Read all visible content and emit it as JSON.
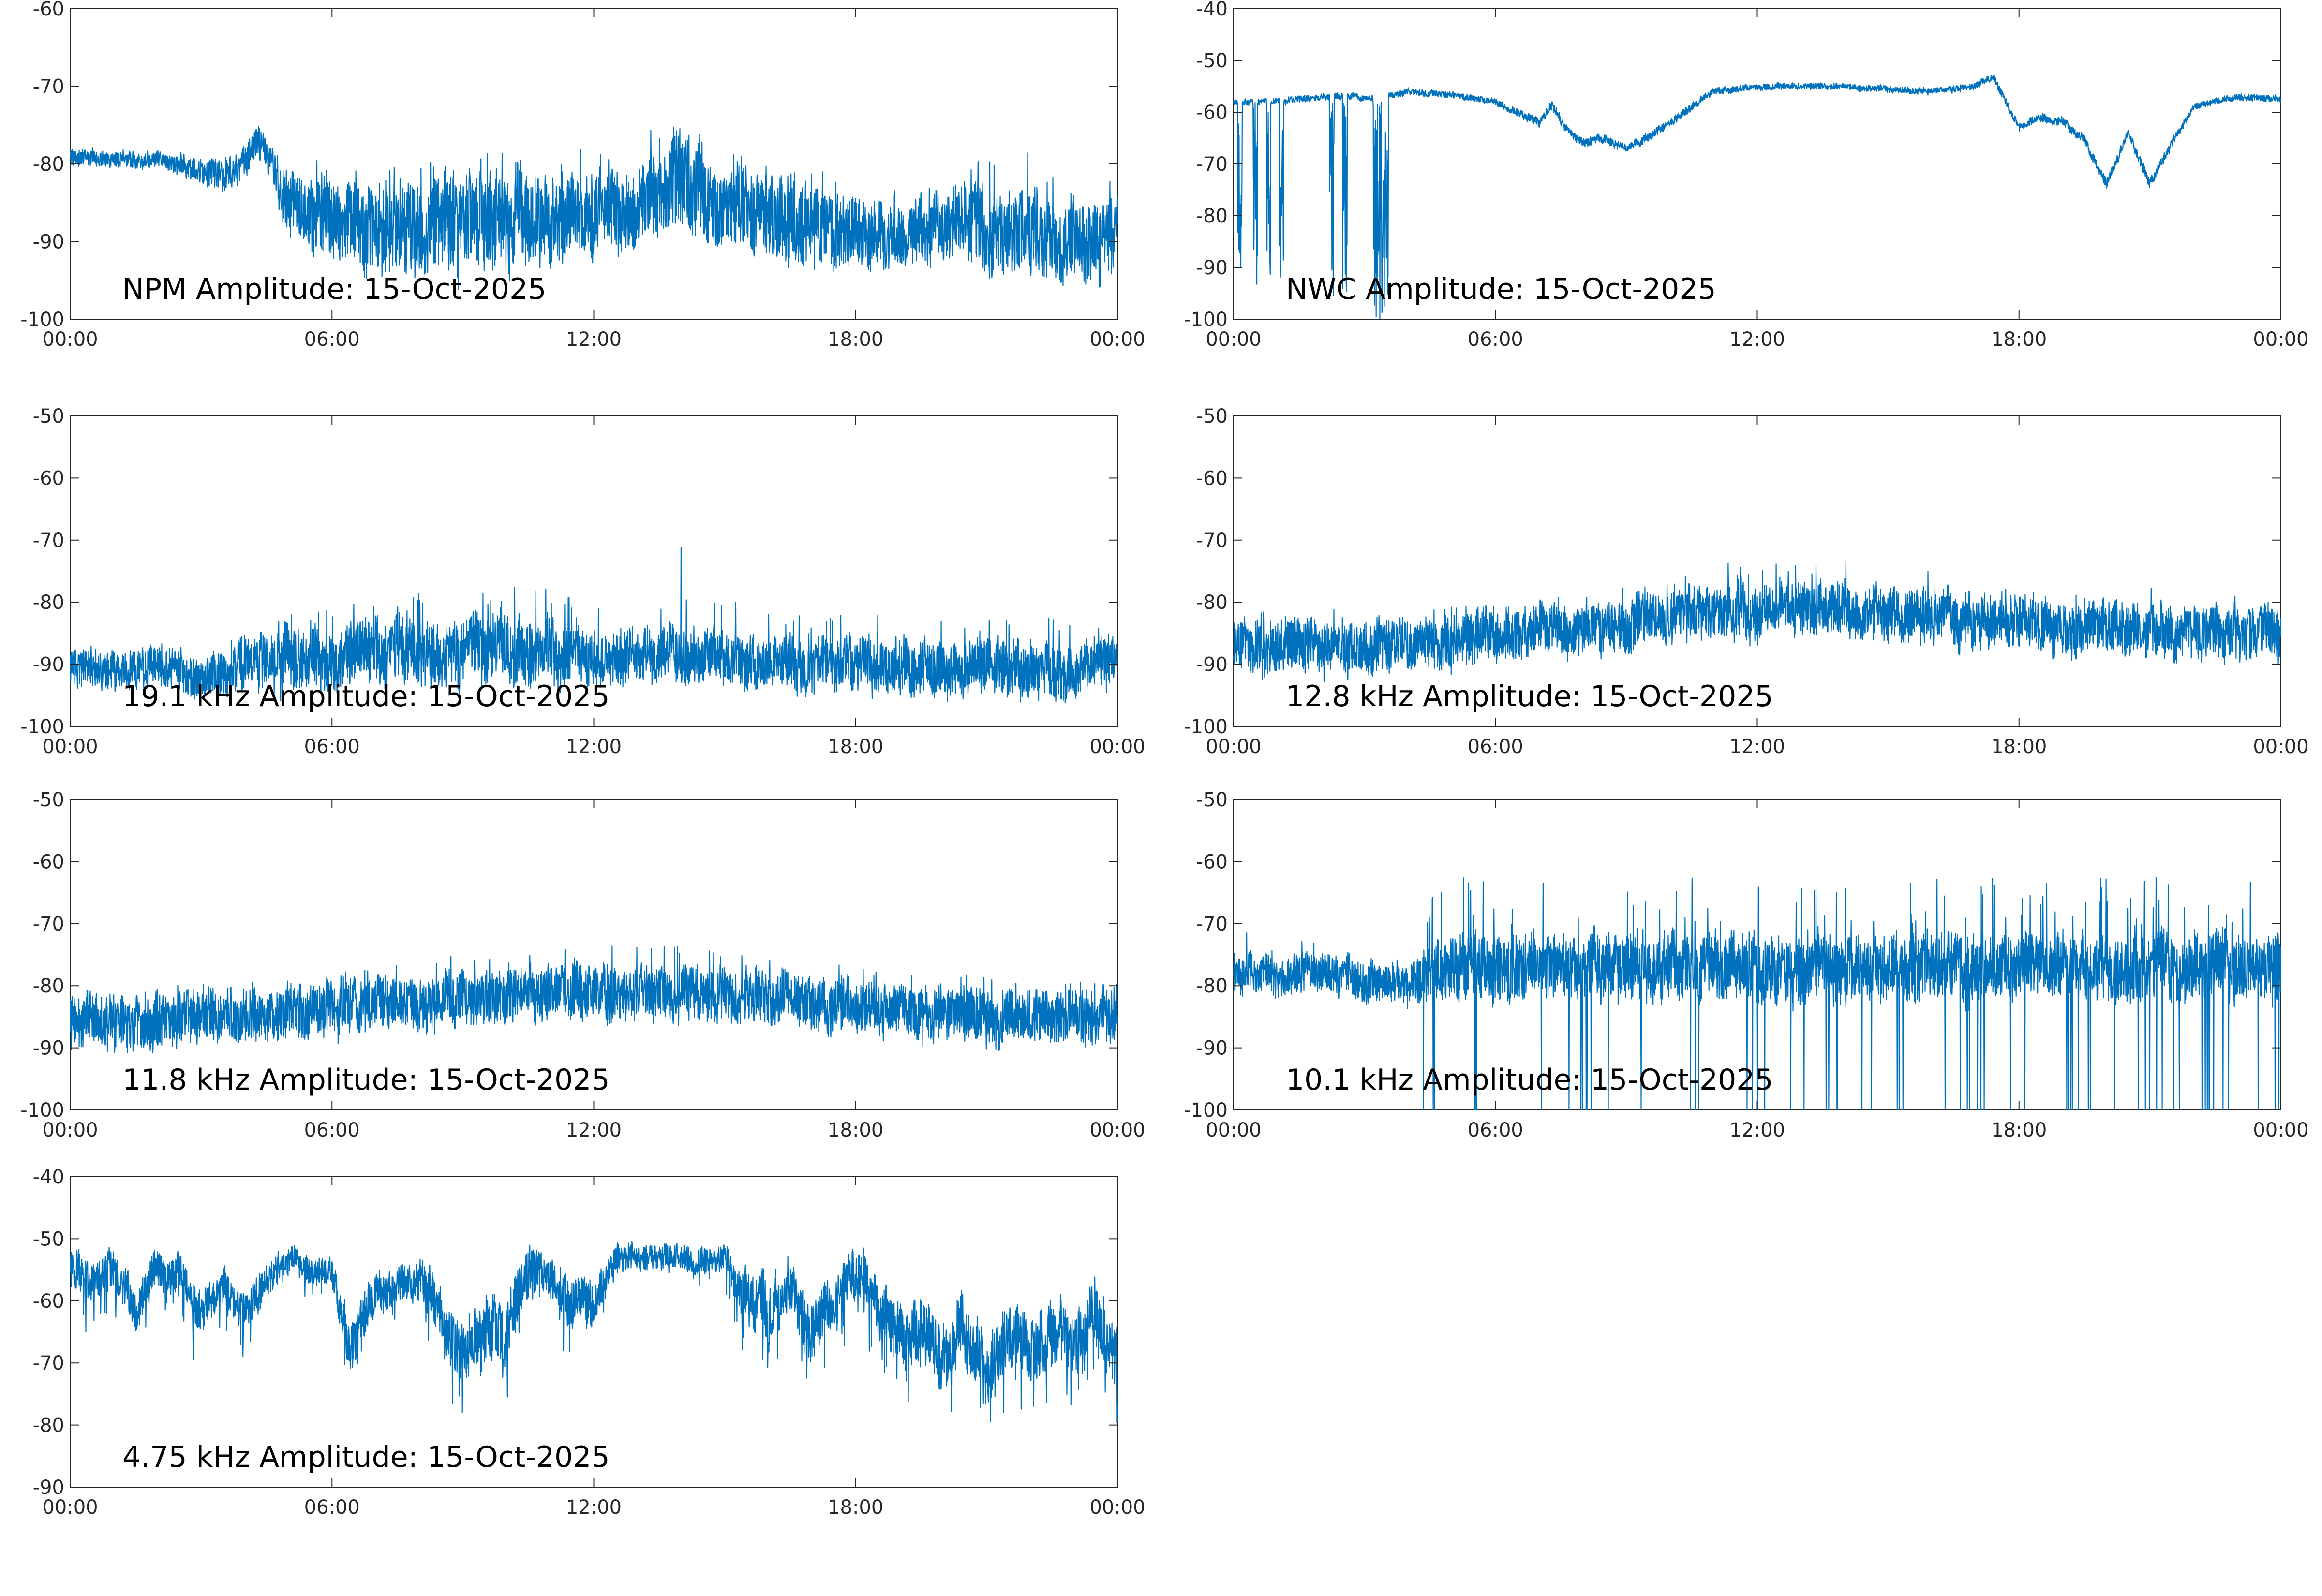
{
  "figure": {
    "line_color": "#0072BD",
    "axis_color": "#262626",
    "background": "#ffffff"
  },
  "chart_data": [
    {
      "type": "line",
      "title": "NPM Amplitude: 15-Oct-2025",
      "xlabel": "",
      "ylabel": "",
      "x_ticks": [
        "00:00",
        "06:00",
        "12:00",
        "18:00",
        "00:00"
      ],
      "y_ticks": [
        "-60",
        "-70",
        "-80",
        "-90",
        "-100"
      ],
      "ylim": [
        -100,
        -60
      ],
      "xlim_hours": [
        0,
        24
      ],
      "grid": false,
      "series": [
        {
          "x_hours": [
            0,
            1,
            2,
            3,
            3.5,
            4,
            4.3,
            4.6,
            5,
            6,
            7,
            8,
            9,
            10,
            11,
            12,
            13,
            14,
            15,
            16,
            17,
            18,
            19,
            20,
            21,
            22,
            23,
            24
          ],
          "values": [
            -79,
            -79.5,
            -79.5,
            -81,
            -82,
            -80,
            -77,
            -80,
            -85,
            -87,
            -88,
            -88,
            -87,
            -87,
            -87,
            -86,
            -86,
            -83,
            -85,
            -87,
            -88,
            -89,
            -89,
            -88,
            -89,
            -89,
            -90,
            -90
          ],
          "spread": [
            1,
            1,
            1,
            1.5,
            2,
            2,
            2,
            2,
            4,
            5,
            6,
            6,
            6,
            6,
            5,
            5,
            5,
            6,
            5,
            5,
            5,
            4,
            4,
            4,
            5,
            5,
            5,
            5
          ],
          "spike_up_max": [
            1,
            1,
            1,
            1,
            1,
            2,
            2,
            3,
            6,
            8,
            9,
            8,
            10,
            9,
            8,
            9,
            9,
            12,
            8,
            8,
            8,
            6,
            6,
            8,
            10,
            11,
            9,
            8
          ]
        }
      ]
    },
    {
      "type": "line",
      "title": "NWC Amplitude: 15-Oct-2025",
      "xlabel": "",
      "ylabel": "",
      "x_ticks": [
        "00:00",
        "06:00",
        "12:00",
        "18:00",
        "00:00"
      ],
      "y_ticks": [
        "-40",
        "-50",
        "-60",
        "-70",
        "-80",
        "-90",
        "-100"
      ],
      "ylim": [
        -100,
        -40
      ],
      "xlim_hours": [
        0,
        24
      ],
      "grid": false,
      "series": [
        {
          "x_hours": [
            0,
            1,
            2,
            3,
            3.4,
            4,
            5,
            6,
            7,
            7.3,
            7.6,
            8,
            8.5,
            9,
            9.3,
            10,
            11,
            12,
            13,
            14,
            15,
            16,
            17,
            17.4,
            18,
            18.5,
            19,
            19.5,
            20,
            20.5,
            21,
            21.5,
            22,
            23,
            24
          ],
          "values": [
            -58,
            -58,
            -57,
            -57,
            -57.5,
            -56,
            -56.5,
            -58,
            -62,
            -59,
            -63,
            -66,
            -65,
            -67,
            -66,
            -62,
            -56,
            -55,
            -55,
            -55,
            -55.5,
            -56,
            -55,
            -53,
            -63,
            -61,
            -62,
            -65,
            -74,
            -64,
            -74,
            -66,
            -59,
            -57,
            -57.5
          ],
          "spread": [
            0.6,
            0.6,
            0.6,
            0.6,
            0.6,
            0.6,
            0.6,
            0.6,
            0.8,
            0.8,
            0.8,
            0.8,
            0.8,
            0.8,
            0.8,
            0.8,
            0.6,
            0.6,
            0.6,
            0.6,
            0.6,
            0.6,
            0.6,
            0.6,
            0.8,
            0.8,
            0.8,
            0.8,
            1,
            0.8,
            1,
            0.8,
            0.6,
            0.6,
            0.6
          ],
          "dropouts": [
            {
              "start_hours": 0.1,
              "end_hours": 0.2,
              "min": -94
            },
            {
              "start_hours": 0.45,
              "end_hours": 0.55,
              "min": -94
            },
            {
              "start_hours": 0.75,
              "end_hours": 0.85,
              "min": -93
            },
            {
              "start_hours": 1.05,
              "end_hours": 1.15,
              "min": -93
            },
            {
              "start_hours": 2.2,
              "end_hours": 2.3,
              "min": -96
            },
            {
              "start_hours": 2.5,
              "end_hours": 2.6,
              "min": -95
            },
            {
              "start_hours": 3.2,
              "end_hours": 3.55,
              "min": -100
            }
          ]
        }
      ]
    },
    {
      "type": "line",
      "title": "19.1 kHz Amplitude: 15-Oct-2025",
      "xlabel": "",
      "ylabel": "",
      "x_ticks": [
        "00:00",
        "06:00",
        "12:00",
        "18:00",
        "00:00"
      ],
      "y_ticks": [
        "-50",
        "-60",
        "-70",
        "-80",
        "-90",
        "-100"
      ],
      "ylim": [
        -100,
        -50
      ],
      "xlim_hours": [
        0,
        24
      ],
      "grid": false,
      "series": [
        {
          "x_hours": [
            0,
            1,
            2,
            3,
            4,
            5,
            6,
            7,
            8,
            9,
            10,
            11,
            12,
            13,
            14,
            15,
            16,
            17,
            18,
            19,
            20,
            21,
            22,
            23,
            24
          ],
          "values": [
            -91,
            -91,
            -90,
            -93,
            -90,
            -89,
            -89,
            -88,
            -88,
            -88,
            -88,
            -88,
            -89,
            -89,
            -89,
            -89,
            -90,
            -90,
            -90,
            -90,
            -91,
            -90,
            -91,
            -91,
            -90
          ],
          "spread": [
            3,
            3,
            3,
            3,
            4,
            5,
            5,
            5,
            5,
            5,
            5,
            5,
            4,
            4,
            4,
            4,
            4,
            4,
            4,
            4,
            4,
            4,
            4,
            4,
            4
          ],
          "spike_up_max": [
            3,
            3,
            4,
            3,
            6,
            8,
            9,
            10,
            10,
            10,
            9,
            18,
            9,
            9,
            20,
            10,
            9,
            9,
            8,
            8,
            8,
            8,
            9,
            8,
            8
          ]
        }
      ]
    },
    {
      "type": "line",
      "title": "12.8 kHz Amplitude: 15-Oct-2025",
      "xlabel": "",
      "ylabel": "",
      "x_ticks": [
        "00:00",
        "06:00",
        "12:00",
        "18:00",
        "00:00"
      ],
      "y_ticks": [
        "-50",
        "-60",
        "-70",
        "-80",
        "-90",
        "-100"
      ],
      "ylim": [
        -100,
        -50
      ],
      "xlim_hours": [
        0,
        24
      ],
      "grid": false,
      "series": [
        {
          "x_hours": [
            0,
            1,
            2,
            3,
            4,
            5,
            6,
            7,
            8,
            9,
            10,
            11,
            12,
            13,
            14,
            15,
            16,
            17,
            18,
            19,
            20,
            21,
            22,
            23,
            24
          ],
          "values": [
            -88,
            -87,
            -87,
            -87,
            -87,
            -86,
            -85,
            -85,
            -84,
            -83,
            -82,
            -82,
            -81,
            -81,
            -81,
            -82,
            -82,
            -83,
            -83,
            -84,
            -84,
            -85,
            -85,
            -85,
            -85
          ],
          "spread": [
            4,
            4,
            4,
            4,
            4,
            4,
            4,
            4,
            4,
            4,
            4,
            4,
            4,
            4,
            4,
            4,
            4,
            4,
            4,
            4,
            4,
            4,
            4,
            4,
            4
          ],
          "spike_up_max": [
            6,
            6,
            6,
            6,
            7,
            6,
            6,
            6,
            6,
            6,
            6,
            7,
            11,
            7,
            9,
            7,
            7,
            6,
            6,
            6,
            6,
            8,
            6,
            6,
            6
          ]
        }
      ]
    },
    {
      "type": "line",
      "title": "11.8 kHz Amplitude: 15-Oct-2025",
      "xlabel": "",
      "ylabel": "",
      "x_ticks": [
        "00:00",
        "06:00",
        "12:00",
        "18:00",
        "00:00"
      ],
      "y_ticks": [
        "-50",
        "-60",
        "-70",
        "-80",
        "-90",
        "-100"
      ],
      "ylim": [
        -100,
        -50
      ],
      "xlim_hours": [
        0,
        24
      ],
      "grid": false,
      "series": [
        {
          "x_hours": [
            0,
            1,
            2,
            3,
            4,
            5,
            6,
            7,
            8,
            9,
            10,
            11,
            12,
            13,
            14,
            15,
            16,
            17,
            18,
            19,
            20,
            21,
            22,
            23,
            24
          ],
          "values": [
            -86,
            -86,
            -86,
            -85,
            -85,
            -84,
            -84,
            -83,
            -83,
            -82,
            -82,
            -81,
            -81,
            -81,
            -81,
            -82,
            -82,
            -83,
            -83,
            -84,
            -84,
            -85,
            -85,
            -85,
            -85
          ],
          "spread": [
            4,
            4,
            4,
            4,
            4,
            4,
            4,
            4,
            4,
            4,
            4,
            4,
            4,
            4,
            4,
            4,
            4,
            4,
            4,
            4,
            4,
            4,
            4,
            4,
            4
          ],
          "spike_up_max": [
            6,
            6,
            6,
            6,
            6,
            6,
            6,
            6,
            7,
            7,
            7,
            8,
            8,
            8,
            8,
            7,
            7,
            7,
            6,
            6,
            7,
            7,
            6,
            6,
            6
          ]
        }
      ]
    },
    {
      "type": "line",
      "title": "10.1 kHz Amplitude: 15-Oct-2025",
      "xlabel": "",
      "ylabel": "",
      "x_ticks": [
        "00:00",
        "06:00",
        "12:00",
        "18:00",
        "00:00"
      ],
      "y_ticks": [
        "-50",
        "-60",
        "-70",
        "-80",
        "-90",
        "-100"
      ],
      "ylim": [
        -100,
        -50
      ],
      "xlim_hours": [
        0,
        24
      ],
      "grid": false,
      "series": [
        {
          "x_hours": [
            0,
            1,
            2,
            3,
            4,
            4.4,
            5,
            6,
            7,
            8,
            9,
            10,
            11,
            12,
            13,
            14,
            15,
            16,
            17,
            18,
            19,
            20,
            21,
            22,
            23,
            24
          ],
          "values": [
            -78,
            -78,
            -78,
            -79,
            -80,
            -78,
            -77,
            -77,
            -77,
            -77,
            -77,
            -77,
            -77,
            -77,
            -77,
            -77,
            -77,
            -77,
            -77,
            -77,
            -77,
            -77,
            -77,
            -77,
            -77,
            -77
          ],
          "spread": [
            3,
            3,
            3,
            3,
            3,
            4,
            5,
            5,
            5,
            5,
            5,
            5,
            5,
            5,
            5,
            5,
            5,
            5,
            5,
            5,
            5,
            5,
            5,
            5,
            5,
            5
          ],
          "spike_up_max": [
            8,
            6,
            5,
            4,
            4,
            14,
            15,
            15,
            15,
            15,
            15,
            15,
            15,
            15,
            15,
            15,
            15,
            15,
            15,
            15,
            15,
            15,
            15,
            15,
            15,
            14
          ],
          "deep_dropouts_after_hours": 4.3,
          "dropout_floor": -100
        }
      ]
    },
    {
      "type": "line",
      "title": "4.75 kHz Amplitude: 15-Oct-2025",
      "xlabel": "",
      "ylabel": "",
      "x_ticks": [
        "00:00",
        "06:00",
        "12:00",
        "18:00",
        "00:00"
      ],
      "y_ticks": [
        "-40",
        "-50",
        "-60",
        "-70",
        "-80",
        "-90"
      ],
      "ylim": [
        -90,
        -40
      ],
      "xlim_hours": [
        0,
        24
      ],
      "grid": false,
      "series": [
        {
          "x_hours": [
            0,
            0.5,
            1,
            1.5,
            2,
            2.5,
            3,
            3.5,
            4,
            4.5,
            5,
            5.5,
            6,
            6.4,
            7,
            7.5,
            8,
            8.5,
            9,
            9.5,
            10,
            10.5,
            11,
            11.5,
            12,
            12.5,
            13,
            13.5,
            14,
            14.5,
            15,
            15.5,
            16,
            16.5,
            17,
            17.5,
            18,
            18.5,
            19,
            19.5,
            20,
            20.5,
            21,
            21.5,
            22,
            22.5,
            23,
            23.5,
            24
          ],
          "values": [
            -55,
            -57,
            -55,
            -62,
            -55,
            -56,
            -62,
            -58,
            -62,
            -57,
            -53,
            -55,
            -55,
            -68,
            -58,
            -58,
            -56,
            -62,
            -69,
            -64,
            -65,
            -55,
            -56,
            -60,
            -60,
            -53,
            -53,
            -53,
            -53,
            -54,
            -53,
            -59,
            -62,
            -58,
            -65,
            -60,
            -55,
            -60,
            -65,
            -64,
            -70,
            -64,
            -72,
            -65,
            -68,
            -66,
            -68,
            -62,
            -70
          ],
          "spread": [
            3,
            3,
            3,
            3,
            3,
            3,
            3,
            3,
            3,
            3,
            2,
            2,
            2,
            4,
            3,
            3,
            3,
            4,
            5,
            5,
            5,
            4,
            3,
            4,
            4,
            2,
            2,
            2,
            2,
            2,
            2,
            4,
            5,
            4,
            5,
            4,
            4,
            4,
            5,
            5,
            5,
            5,
            5,
            5,
            5,
            5,
            5,
            5,
            5
          ],
          "spike_down_max": [
            10,
            8,
            8,
            12,
            6,
            8,
            12,
            10,
            8,
            6,
            4,
            6,
            5,
            8,
            8,
            6,
            6,
            12,
            10,
            12,
            12,
            6,
            10,
            14,
            12,
            4,
            3,
            3,
            3,
            5,
            5,
            14,
            14,
            10,
            12,
            10,
            10,
            12,
            14,
            12,
            10,
            12,
            10,
            12,
            12,
            10,
            10,
            12,
            10
          ]
        }
      ]
    }
  ]
}
